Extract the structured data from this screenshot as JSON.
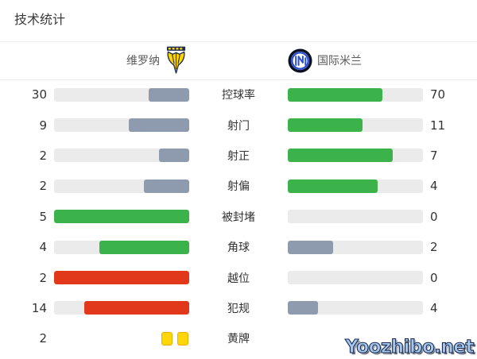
{
  "page": {
    "title": "技术统计",
    "watermark": "Yoozhibo.net"
  },
  "teams": {
    "home": {
      "name": "维罗纳",
      "logo": "hellas-verona-crest"
    },
    "away": {
      "name": "国际米兰",
      "logo": "inter-milan-crest"
    }
  },
  "colors": {
    "loser_gray": "#8e9bae",
    "winner_green": "#3bb24a",
    "foul_red": "#e1381c",
    "bar_track": "#ebebeb",
    "card_yellow": "#ffd60a",
    "card_border": "#e9af00"
  },
  "chart_data": {
    "type": "bar",
    "title": "技术统计",
    "teams": [
      "维罗纳",
      "国际米兰"
    ],
    "layout": "mirrored horizontal bars, labels centered, home bars fill right-to-left, away bars fill left-to-right",
    "stats": [
      {
        "label": "控球率",
        "home_value": "30",
        "away_value": "70",
        "home_pct": 30,
        "away_pct": 70,
        "home_color": "gray",
        "away_color": "green"
      },
      {
        "label": "射门",
        "home_value": "9",
        "away_value": "11",
        "home_pct": 45,
        "away_pct": 55,
        "home_color": "gray",
        "away_color": "green"
      },
      {
        "label": "射正",
        "home_value": "2",
        "away_value": "7",
        "home_pct": 22.2,
        "away_pct": 77.8,
        "home_color": "gray",
        "away_color": "green"
      },
      {
        "label": "射偏",
        "home_value": "2",
        "away_value": "4",
        "home_pct": 33.3,
        "away_pct": 66.7,
        "home_color": "gray",
        "away_color": "green"
      },
      {
        "label": "被封堵",
        "home_value": "5",
        "away_value": "0",
        "home_pct": 100,
        "away_pct": 0,
        "home_color": "green",
        "away_color": "none"
      },
      {
        "label": "角球",
        "home_value": "4",
        "away_value": "2",
        "home_pct": 66.7,
        "away_pct": 33.3,
        "home_color": "green",
        "away_color": "gray"
      },
      {
        "label": "越位",
        "home_value": "2",
        "away_value": "0",
        "home_pct": 100,
        "away_pct": 0,
        "home_color": "red",
        "away_color": "none"
      },
      {
        "label": "犯规",
        "home_value": "14",
        "away_value": "4",
        "home_pct": 77.8,
        "away_pct": 22.2,
        "home_color": "red",
        "away_color": "gray"
      },
      {
        "label": "黄牌",
        "home_value": "2",
        "away_value": null,
        "home_cards": 2,
        "away_pct": 0,
        "home_color": "cards",
        "away_color": "hidden"
      }
    ]
  }
}
